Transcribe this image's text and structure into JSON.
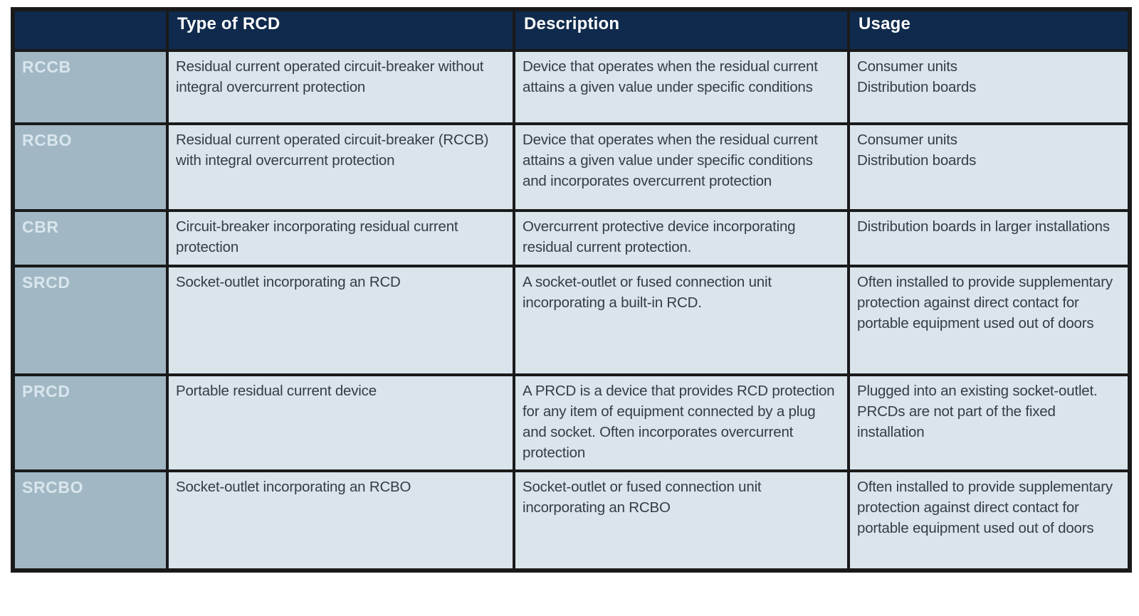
{
  "table": {
    "colors": {
      "header_bg": "#0f2a4c",
      "header_text": "#ffffff",
      "acronym_bg": "#a1b7c4",
      "acronym_text": "#d9e6ed",
      "cell_bg": "#d9e4eb",
      "cell_text": "#333d48",
      "border": "#1a1a1a"
    },
    "headers": [
      "",
      "Type of RCD",
      "Description",
      "Usage"
    ],
    "rows": [
      {
        "acronym": "RCCB",
        "type": "Residual current operated circuit-breaker without integral overcurrent protection",
        "description": "Device that operates when the residual current attains a given value under specific conditions",
        "usage": "Consumer units\nDistribution boards"
      },
      {
        "acronym": "RCBO",
        "type": "Residual current operated circuit-breaker (RCCB) with integral overcurrent protection",
        "description": "Device that operates when the residual current attains a given value under specific conditions and incorporates overcurrent protection",
        "usage": "Consumer units\nDistribution boards"
      },
      {
        "acronym": "CBR",
        "type": "Circuit-breaker incorporating residual current protection",
        "description": "Overcurrent protective device incorporating residual current protection.",
        "usage": "Distribution boards in larger installations"
      },
      {
        "acronym": "SRCD",
        "type": "Socket-outlet incorporating an RCD",
        "description": "A socket-outlet or fused connection unit incorporating a built-in RCD.",
        "usage": "Often installed to provide supplementary protection against direct contact for portable equipment used out of doors"
      },
      {
        "acronym": "PRCD",
        "type": "Portable residual current device",
        "description": "A PRCD is a device that provides RCD protection for any item of equipment connected by a plug and socket. Often incorporates overcurrent protection",
        "usage": "Plugged into an existing socket-outlet. PRCDs are not part of the fixed installation"
      },
      {
        "acronym": "SRCBO",
        "type": "Socket-outlet incorporating an RCBO",
        "description": "Socket-outlet or fused connection unit incorporating an RCBO",
        "usage": "Often installed to provide supplementary protection against direct contact for portable equipment used out of doors"
      }
    ]
  }
}
